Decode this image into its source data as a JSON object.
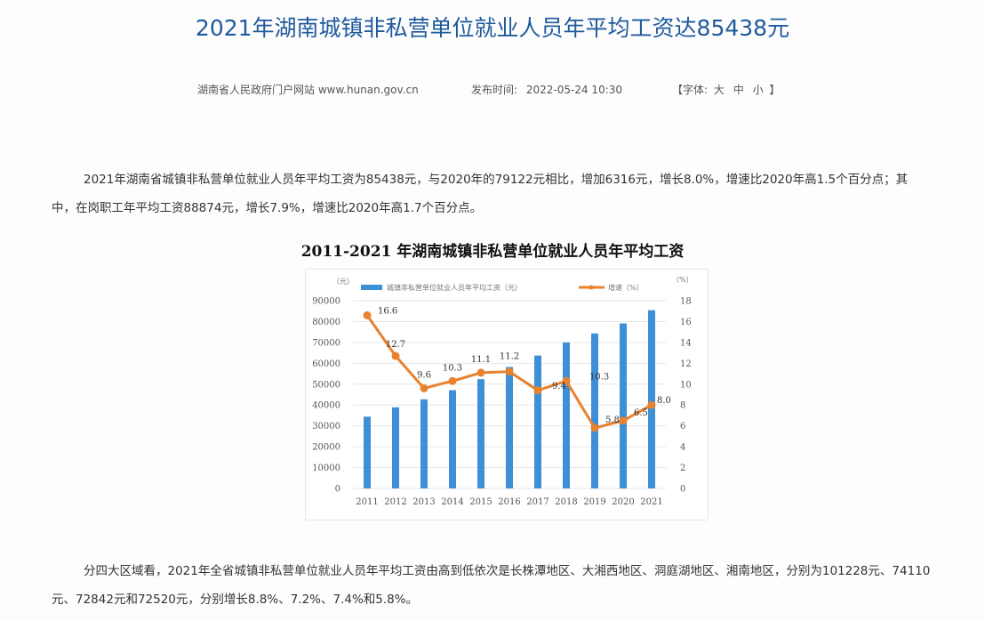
{
  "article": {
    "title": "2021年湖南城镇非私营单位就业人员年平均工资达85438元",
    "source": "湖南省人民政府门户网站 www.hunan.gov.cn",
    "publish_label": "发布时间:",
    "publish_time": "2022-05-24 10:30",
    "font_size": {
      "open": "【字体:",
      "large": "大",
      "medium": "中",
      "small": "小",
      "close": "】"
    },
    "paragraph1": "2021年湖南省城镇非私营单位就业人员年平均工资为85438元，与2020年的79122元相比，增加6316元，增长8.0%，增速比2020年高1.5个百分点；其中，在岗职工年平均工资88874元，增长7.9%，增速比2020年高1.7个百分点。",
    "paragraph2": "分四大区域看，2021年全省城镇非私营单位就业人员年平均工资由高到低依次是长株潭地区、大湘西地区、洞庭湖地区、湘南地区，分别为101228元、74110元、72842元和72520元，分别增长8.8%、7.2%、7.4%和5.8%。"
  },
  "chart_data": {
    "type": "bar",
    "title": "2011-2021 年湖南城镇非私营单位就业人员年平均工资",
    "categories": [
      "2011",
      "2012",
      "2013",
      "2014",
      "2015",
      "2016",
      "2017",
      "2018",
      "2019",
      "2020",
      "2021"
    ],
    "series": [
      {
        "name": "城镇非私营单位就业人员年平均工资（元）",
        "type": "bar",
        "axis": "left",
        "color": "#3d8fd6",
        "values": [
          34400,
          38900,
          42700,
          47100,
          52400,
          58200,
          63700,
          70000,
          74300,
          79122,
          85438
        ]
      },
      {
        "name": "增速（%）",
        "type": "line",
        "axis": "right",
        "color": "#e8822f",
        "values": [
          16.6,
          12.7,
          9.6,
          10.3,
          11.1,
          11.2,
          9.4,
          10.3,
          5.8,
          6.5,
          8.0
        ]
      }
    ],
    "ylabel_left": "（元）",
    "ylabel_right": "（%）",
    "ylim_left": [
      0,
      90000
    ],
    "ylim_right": [
      0,
      18
    ],
    "yticks_left": [
      "0",
      "10000",
      "20000",
      "30000",
      "40000",
      "50000",
      "60000",
      "70000",
      "80000",
      "90000"
    ],
    "yticks_right": [
      "0",
      "2",
      "4",
      "6",
      "8",
      "10",
      "12",
      "14",
      "16",
      "18"
    ],
    "grid": true,
    "legend_position": "top"
  }
}
